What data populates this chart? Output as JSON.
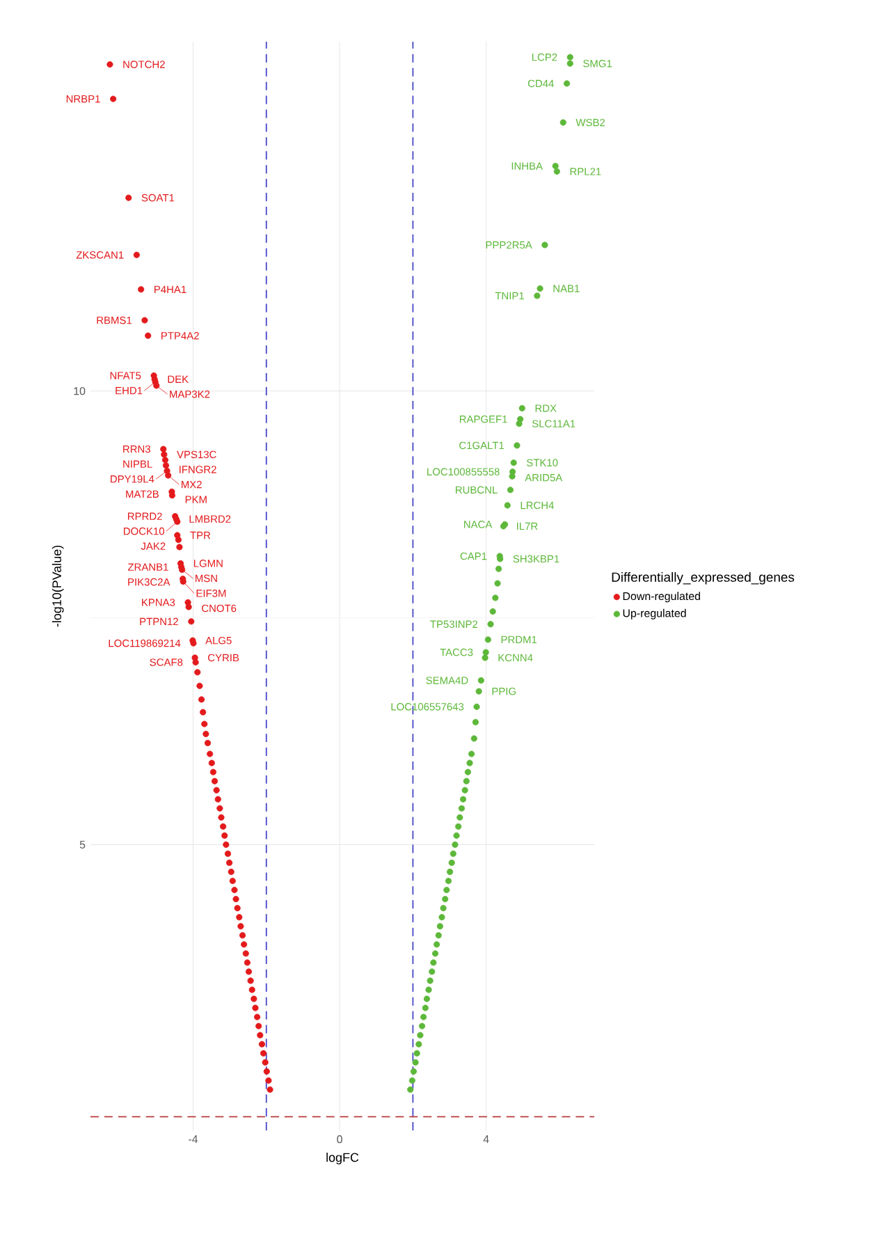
{
  "chart_data": {
    "type": "scatter",
    "xlabel": "logFC",
    "ylabel": "-log10(PValue)",
    "legend_title": "Differentially_expressed_genes",
    "legend": "right",
    "grid": true,
    "xlim": [
      -6.8,
      6.95
    ],
    "ylim": [
      1.85,
      13.85
    ],
    "xticks": [
      -4,
      0,
      4
    ],
    "yticks": [
      5,
      10
    ],
    "ref_lines": [
      {
        "axis": "x",
        "value": -2,
        "color": "#4646c8",
        "line_style": "dashed"
      },
      {
        "axis": "x",
        "value": 2,
        "color": "#4646c8",
        "line_style": "dashed"
      },
      {
        "axis": "y",
        "value": 2,
        "color": "#b83a3a",
        "line_style": "dashed"
      }
    ],
    "series": [
      {
        "name": "Down-regulated",
        "color": "#e31a1c",
        "x": [
          -6.27,
          -6.18,
          -5.76,
          -5.54,
          -5.42,
          -5.32,
          -5.23,
          -5.07,
          -5.05,
          -5.03,
          -5.0,
          -4.81,
          -4.79,
          -4.76,
          -4.74,
          -4.71,
          -4.68,
          -4.58,
          -4.57,
          -4.49,
          -4.46,
          -4.43,
          -4.43,
          -4.4,
          -4.37,
          -4.34,
          -4.32,
          -4.3,
          -4.28,
          -4.27,
          -4.14,
          -4.12,
          -4.05,
          -4.01,
          -3.99,
          -3.95,
          -3.93,
          -3.88,
          -3.82,
          -3.77,
          -3.73,
          -3.69,
          -3.65,
          -3.6,
          -3.54,
          -3.49,
          -3.45,
          -3.41,
          -3.36,
          -3.32,
          -3.27,
          -3.23,
          -3.18,
          -3.14,
          -3.1,
          -3.05,
          -3.01,
          -2.96,
          -2.92,
          -2.87,
          -2.83,
          -2.79,
          -2.74,
          -2.7,
          -2.65,
          -2.61,
          -2.56,
          -2.52,
          -2.48,
          -2.43,
          -2.39,
          -2.34,
          -2.3,
          -2.25,
          -2.21,
          -2.17,
          -2.12,
          -2.08,
          -2.03,
          -1.99,
          -1.94,
          -1.9
        ],
        "values": [
          13.6,
          13.22,
          12.13,
          11.5,
          11.12,
          10.78,
          10.61,
          10.17,
          10.13,
          10.1,
          10.06,
          9.36,
          9.3,
          9.24,
          9.18,
          9.12,
          9.07,
          8.89,
          8.85,
          8.62,
          8.59,
          8.56,
          8.41,
          8.36,
          8.28,
          8.1,
          8.06,
          8.03,
          7.93,
          7.9,
          7.67,
          7.62,
          7.46,
          7.25,
          7.22,
          7.06,
          7.01,
          6.9,
          6.75,
          6.6,
          6.46,
          6.33,
          6.22,
          6.12,
          6.0,
          5.9,
          5.8,
          5.7,
          5.6,
          5.5,
          5.4,
          5.3,
          5.2,
          5.1,
          5.0,
          4.9,
          4.8,
          4.7,
          4.6,
          4.5,
          4.4,
          4.3,
          4.2,
          4.1,
          4.0,
          3.9,
          3.8,
          3.7,
          3.6,
          3.5,
          3.4,
          3.3,
          3.2,
          3.1,
          3.0,
          2.9,
          2.8,
          2.7,
          2.6,
          2.5,
          2.4,
          2.3
        ]
      },
      {
        "name": "Up-regulated",
        "color": "#5db83a",
        "x": [
          6.29,
          6.29,
          6.2,
          6.1,
          5.89,
          5.93,
          5.6,
          5.47,
          5.39,
          4.98,
          4.93,
          4.9,
          4.84,
          4.75,
          4.72,
          4.71,
          4.66,
          4.58,
          4.51,
          4.47,
          4.37,
          4.38,
          4.34,
          4.31,
          4.25,
          4.18,
          4.12,
          4.05,
          3.99,
          3.97,
          3.86,
          3.8,
          3.74,
          3.71,
          3.67,
          3.6,
          3.55,
          3.5,
          3.46,
          3.42,
          3.37,
          3.33,
          3.28,
          3.24,
          3.19,
          3.15,
          3.1,
          3.06,
          3.01,
          2.97,
          2.92,
          2.88,
          2.83,
          2.79,
          2.74,
          2.7,
          2.65,
          2.61,
          2.56,
          2.52,
          2.47,
          2.43,
          2.38,
          2.34,
          2.29,
          2.25,
          2.2,
          2.16,
          2.11,
          2.07,
          2.02,
          1.98,
          1.93
        ],
        "values": [
          13.68,
          13.61,
          13.39,
          12.96,
          12.48,
          12.42,
          11.61,
          11.13,
          11.05,
          9.81,
          9.69,
          9.64,
          9.4,
          9.21,
          9.11,
          9.06,
          8.91,
          8.74,
          8.53,
          8.51,
          8.18,
          8.15,
          8.04,
          7.88,
          7.72,
          7.57,
          7.43,
          7.26,
          7.12,
          7.06,
          6.81,
          6.69,
          6.52,
          6.35,
          6.17,
          6.0,
          5.9,
          5.8,
          5.7,
          5.6,
          5.5,
          5.4,
          5.3,
          5.2,
          5.1,
          5.0,
          4.9,
          4.8,
          4.7,
          4.6,
          4.5,
          4.4,
          4.3,
          4.2,
          4.1,
          4.0,
          3.9,
          3.8,
          3.7,
          3.6,
          3.5,
          3.4,
          3.3,
          3.2,
          3.1,
          3.0,
          2.9,
          2.8,
          2.7,
          2.6,
          2.5,
          2.4,
          2.3
        ]
      }
    ],
    "annotations": [
      {
        "text": "NOTCH2",
        "x": -6.27,
        "y": 13.6
      },
      {
        "text": "NRBP1",
        "x": -6.18,
        "y": 13.22
      },
      {
        "text": "SOAT1",
        "x": -5.76,
        "y": 12.13
      },
      {
        "text": "ZKSCAN1",
        "x": -5.54,
        "y": 11.5
      },
      {
        "text": "P4HA1",
        "x": -5.42,
        "y": 11.12
      },
      {
        "text": "RBMS1",
        "x": -5.32,
        "y": 10.78
      },
      {
        "text": "PTP4A2",
        "x": -5.23,
        "y": 10.61
      },
      {
        "text": "NFAT5",
        "x": -5.07,
        "y": 10.17
      },
      {
        "text": "DEK",
        "x": -5.05,
        "y": 10.13
      },
      {
        "text": "EHD1",
        "x": -5.03,
        "y": 10.1
      },
      {
        "text": "MAP3K2",
        "x": -5.0,
        "y": 10.06
      },
      {
        "text": "RRN3",
        "x": -4.81,
        "y": 9.36
      },
      {
        "text": "VPS13C",
        "x": -4.79,
        "y": 9.3
      },
      {
        "text": "NIPBL",
        "x": -4.76,
        "y": 9.24
      },
      {
        "text": "IFNGR2",
        "x": -4.74,
        "y": 9.18
      },
      {
        "text": "DPY19L4",
        "x": -4.71,
        "y": 9.12
      },
      {
        "text": "MX2",
        "x": -4.68,
        "y": 9.07
      },
      {
        "text": "MAT2B",
        "x": -4.58,
        "y": 8.89
      },
      {
        "text": "PKM",
        "x": -4.57,
        "y": 8.85
      },
      {
        "text": "RPRD2",
        "x": -4.49,
        "y": 8.62
      },
      {
        "text": "LMBRD2",
        "x": -4.46,
        "y": 8.59
      },
      {
        "text": "DOCK10",
        "x": -4.43,
        "y": 8.56
      },
      {
        "text": "TPR",
        "x": -4.43,
        "y": 8.41
      },
      {
        "text": "JAK2",
        "x": -4.4,
        "y": 8.36
      },
      {
        "text": "LGMN",
        "x": -4.34,
        "y": 8.1
      },
      {
        "text": "ZRANB1",
        "x": -4.32,
        "y": 8.06
      },
      {
        "text": "MSN",
        "x": -4.3,
        "y": 8.03
      },
      {
        "text": "PIK3C2A",
        "x": -4.28,
        "y": 7.93
      },
      {
        "text": "EIF3M",
        "x": -4.27,
        "y": 7.9
      },
      {
        "text": "KPNA3",
        "x": -4.14,
        "y": 7.67
      },
      {
        "text": "CNOT6",
        "x": -4.12,
        "y": 7.62
      },
      {
        "text": "PTPN12",
        "x": -4.05,
        "y": 7.46
      },
      {
        "text": "ALG5",
        "x": -4.01,
        "y": 7.25
      },
      {
        "text": "LOC119869214",
        "x": -3.99,
        "y": 7.22
      },
      {
        "text": "CYRIB",
        "x": -3.95,
        "y": 7.06
      },
      {
        "text": "SCAF8",
        "x": -3.93,
        "y": 7.01
      },
      {
        "text": "LCP2",
        "x": 6.29,
        "y": 13.68
      },
      {
        "text": "SMG1",
        "x": 6.29,
        "y": 13.61
      },
      {
        "text": "CD44",
        "x": 6.2,
        "y": 13.39
      },
      {
        "text": "WSB2",
        "x": 6.1,
        "y": 12.96
      },
      {
        "text": "INHBA",
        "x": 5.89,
        "y": 12.48
      },
      {
        "text": "RPL21",
        "x": 5.93,
        "y": 12.42
      },
      {
        "text": "PPP2R5A",
        "x": 5.6,
        "y": 11.61
      },
      {
        "text": "NAB1",
        "x": 5.47,
        "y": 11.13
      },
      {
        "text": "TNIP1",
        "x": 5.39,
        "y": 11.05
      },
      {
        "text": "RDX",
        "x": 4.98,
        "y": 9.81
      },
      {
        "text": "RAPGEF1",
        "x": 4.93,
        "y": 9.69
      },
      {
        "text": "SLC11A1",
        "x": 4.9,
        "y": 9.64
      },
      {
        "text": "C1GALT1",
        "x": 4.84,
        "y": 9.4
      },
      {
        "text": "STK10",
        "x": 4.75,
        "y": 9.21
      },
      {
        "text": "LOC100855558",
        "x": 4.72,
        "y": 9.11
      },
      {
        "text": "ARID5A",
        "x": 4.71,
        "y": 9.06
      },
      {
        "text": "RUBCNL",
        "x": 4.66,
        "y": 8.91
      },
      {
        "text": "LRCH4",
        "x": 4.58,
        "y": 8.74
      },
      {
        "text": "NACA",
        "x": 4.51,
        "y": 8.53
      },
      {
        "text": "IL7R",
        "x": 4.47,
        "y": 8.51
      },
      {
        "text": "CAP1",
        "x": 4.37,
        "y": 8.18
      },
      {
        "text": "SH3KBP1",
        "x": 4.38,
        "y": 8.15
      },
      {
        "text": "TP53INP2",
        "x": 4.12,
        "y": 7.43
      },
      {
        "text": "PRDM1",
        "x": 4.05,
        "y": 7.26
      },
      {
        "text": "TACC3",
        "x": 3.99,
        "y": 7.12
      },
      {
        "text": "KCNN4",
        "x": 3.97,
        "y": 7.06
      },
      {
        "text": "SEMA4D",
        "x": 3.86,
        "y": 6.81
      },
      {
        "text": "PPIG",
        "x": 3.8,
        "y": 6.69
      },
      {
        "text": "LOC106557643",
        "x": 3.74,
        "y": 6.52
      }
    ]
  }
}
